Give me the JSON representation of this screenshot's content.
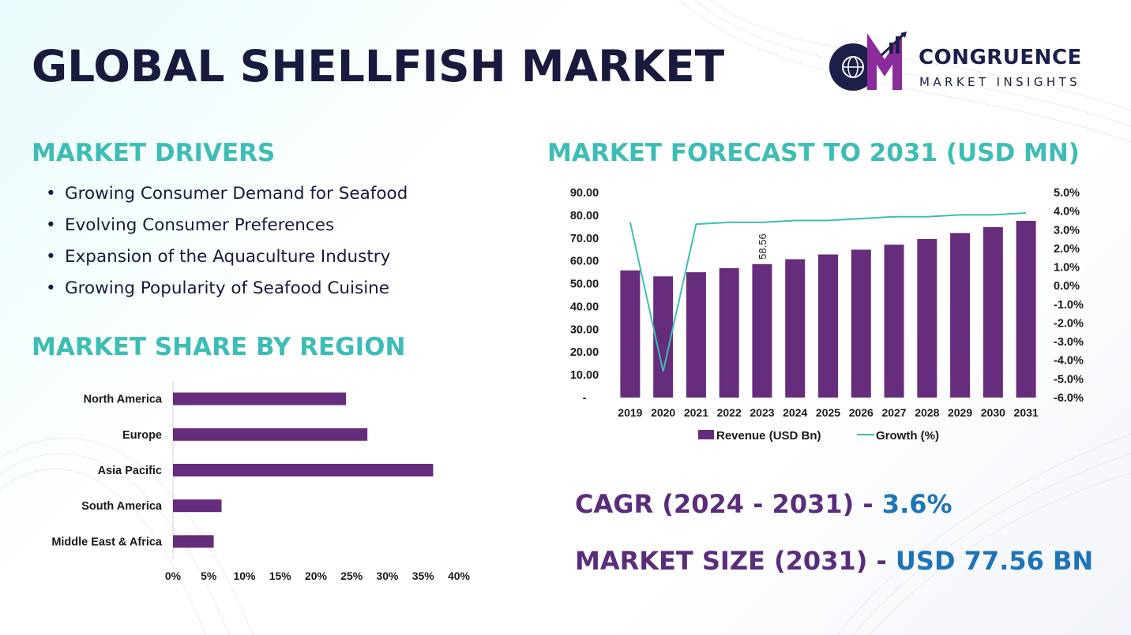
{
  "header": {
    "title": "GLOBAL SHELLFISH MARKET",
    "logo": {
      "line1": "CONGRUENCE",
      "line2": "MARKET INSIGHTS",
      "monogram": "CM"
    }
  },
  "drivers": {
    "title": "MARKET DRIVERS",
    "items": [
      "Growing Consumer Demand for Seafood",
      "Evolving Consumer Preferences",
      "Expansion of the Aquaculture Industry",
      "Growing Popularity of Seafood Cuisine"
    ]
  },
  "share": {
    "title": "MARKET SHARE BY REGION"
  },
  "forecast": {
    "title": "MARKET FORECAST TO 2031 (USD MN)"
  },
  "stats": {
    "cagr_label": "CAGR (2024 - 2031)",
    "cagr_sep": " - ",
    "cagr_value": "3.6%",
    "size_label": "MARKET SIZE (2031)",
    "size_sep": " - ",
    "size_value": "USD 77.56 BN"
  },
  "colors": {
    "bar": "#652d7c",
    "line": "#3dbdb6",
    "accent_title": "#3dbdb6",
    "label_purple": "#5a2d7c",
    "value_blue": "#1d74b9",
    "dark": "#1a1a3e"
  },
  "chart_data": [
    {
      "type": "bar",
      "orientation": "horizontal",
      "categories": [
        "North America",
        "Europe",
        "Asia Pacific",
        "South America",
        "Middle East & Africa"
      ],
      "values": [
        24.2,
        27.2,
        36.4,
        6.8,
        5.7
      ],
      "x_ticks": [
        "0%",
        "5%",
        "10%",
        "15%",
        "20%",
        "25%",
        "30%",
        "35%",
        "40%"
      ],
      "xlim": [
        0,
        40
      ]
    },
    {
      "type": "bar",
      "categories": [
        "2019",
        "2020",
        "2021",
        "2022",
        "2023",
        "2024",
        "2025",
        "2026",
        "2027",
        "2028",
        "2029",
        "2030",
        "2031"
      ],
      "series": [
        {
          "name": "Revenue (USD Bn)",
          "type": "bar",
          "axis": "left",
          "values": [
            55.8,
            53.2,
            55.0,
            56.8,
            58.56,
            60.7,
            62.8,
            64.9,
            67.1,
            69.6,
            72.2,
            74.8,
            77.56
          ]
        },
        {
          "name": "Growth (%)",
          "type": "line",
          "axis": "right",
          "values": [
            3.4,
            -4.6,
            3.3,
            3.4,
            3.4,
            3.5,
            3.5,
            3.6,
            3.7,
            3.7,
            3.8,
            3.8,
            3.9
          ]
        }
      ],
      "data_labels": [
        {
          "index": 4,
          "text": "58.56"
        }
      ],
      "y_left_ticks": [
        "-",
        "10.00",
        "20.00",
        "30.00",
        "40.00",
        "50.00",
        "60.00",
        "70.00",
        "80.00",
        "90.00"
      ],
      "ylim_left": [
        0,
        90
      ],
      "y_right_ticks": [
        "-6.0%",
        "-5.0%",
        "-4.0%",
        "-3.0%",
        "-2.0%",
        "-1.0%",
        "0.0%",
        "1.0%",
        "2.0%",
        "3.0%",
        "4.0%",
        "5.0%"
      ],
      "ylim_right": [
        -6,
        5
      ],
      "legend": "bottom"
    }
  ]
}
